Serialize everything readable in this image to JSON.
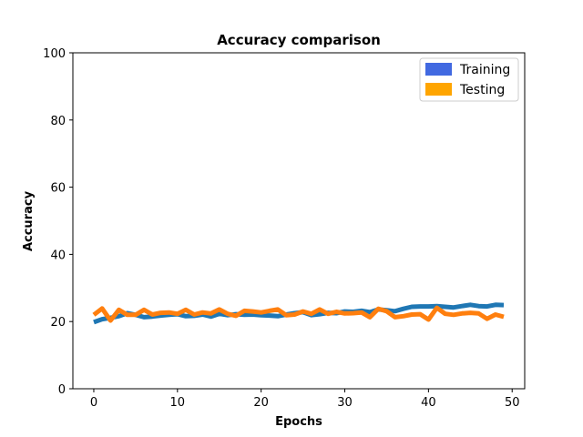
{
  "chart_data": {
    "type": "line",
    "title": "Accuracy comparison",
    "xlabel": "Epochs",
    "ylabel": "Accuracy",
    "xlim": [
      -2.5,
      51.5
    ],
    "ylim": [
      0,
      100
    ],
    "xticks": [
      0,
      10,
      20,
      30,
      40,
      50
    ],
    "yticks": [
      0,
      20,
      40,
      60,
      80,
      100
    ],
    "grid": false,
    "legend_position": "top-right",
    "x": [
      0,
      1,
      2,
      3,
      4,
      5,
      6,
      7,
      8,
      9,
      10,
      11,
      12,
      13,
      14,
      15,
      16,
      17,
      18,
      19,
      20,
      21,
      22,
      23,
      24,
      25,
      26,
      27,
      28,
      29,
      30,
      31,
      32,
      33,
      34,
      35,
      36,
      37,
      38,
      39,
      40,
      41,
      42,
      43,
      44,
      45,
      46,
      47,
      48,
      49
    ],
    "series": [
      {
        "name": "Training",
        "color": "#1f77b4",
        "legend_color": "#4169e1",
        "values": [
          19.8,
          20.7,
          21.1,
          21.6,
          22.5,
          22.0,
          21.3,
          21.5,
          21.8,
          22.0,
          22.2,
          21.6,
          21.7,
          22.1,
          21.5,
          22.3,
          21.9,
          22.2,
          22.0,
          22.1,
          21.9,
          21.8,
          21.6,
          22.1,
          22.5,
          22.8,
          21.9,
          22.2,
          22.6,
          22.5,
          23.0,
          22.9,
          23.2,
          22.8,
          23.6,
          23.4,
          23.1,
          23.8,
          24.4,
          24.5,
          24.5,
          24.6,
          24.4,
          24.2,
          24.6,
          25.0,
          24.6,
          24.5,
          25.0,
          24.9
        ]
      },
      {
        "name": "Testing",
        "color": "#ff7f0e",
        "legend_color": "#ffa500",
        "values": [
          22.0,
          23.9,
          20.3,
          23.5,
          22.0,
          22.0,
          23.5,
          22.1,
          22.6,
          22.7,
          22.3,
          23.5,
          22.1,
          22.7,
          22.4,
          23.6,
          22.3,
          21.7,
          23.2,
          23.0,
          22.7,
          23.2,
          23.6,
          21.9,
          22.1,
          23.0,
          22.3,
          23.6,
          22.3,
          22.9,
          22.4,
          22.5,
          22.7,
          21.3,
          23.8,
          23.1,
          21.3,
          21.6,
          22.1,
          22.2,
          20.6,
          24.1,
          22.3,
          22.0,
          22.4,
          22.6,
          22.4,
          20.8,
          22.1,
          21.4
        ]
      }
    ]
  }
}
